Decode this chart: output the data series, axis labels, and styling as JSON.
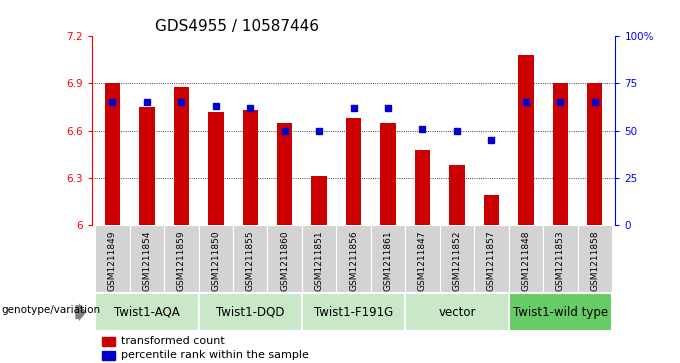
{
  "title": "GDS4955 / 10587446",
  "samples": [
    "GSM1211849",
    "GSM1211854",
    "GSM1211859",
    "GSM1211850",
    "GSM1211855",
    "GSM1211860",
    "GSM1211851",
    "GSM1211856",
    "GSM1211861",
    "GSM1211847",
    "GSM1211852",
    "GSM1211857",
    "GSM1211848",
    "GSM1211853",
    "GSM1211858"
  ],
  "bar_values": [
    6.9,
    6.75,
    6.88,
    6.72,
    6.73,
    6.65,
    6.31,
    6.68,
    6.65,
    6.48,
    6.38,
    6.19,
    7.08,
    6.9,
    6.9
  ],
  "percentile_values": [
    65,
    65,
    65,
    63,
    62,
    50,
    50,
    62,
    62,
    51,
    50,
    45,
    65,
    65,
    65
  ],
  "bar_color": "#cc0000",
  "dot_color": "#0000cc",
  "ylim_left": [
    6.0,
    7.2
  ],
  "ylim_right": [
    0,
    100
  ],
  "yticks_left": [
    6.0,
    6.3,
    6.6,
    6.9,
    7.2
  ],
  "yticks_right": [
    0,
    25,
    50,
    75,
    100
  ],
  "ytick_labels_left": [
    "6",
    "6.3",
    "6.6",
    "6.9",
    "7.2"
  ],
  "ytick_labels_right": [
    "0",
    "25",
    "50",
    "75",
    "100%"
  ],
  "hlines": [
    6.3,
    6.6,
    6.9
  ],
  "groups": [
    {
      "label": "Twist1-AQA",
      "start": 0,
      "end": 3,
      "color": "#c8e8c8"
    },
    {
      "label": "Twist1-DQD",
      "start": 3,
      "end": 6,
      "color": "#c8e8c8"
    },
    {
      "label": "Twist1-F191G",
      "start": 6,
      "end": 9,
      "color": "#c8e8c8"
    },
    {
      "label": "vector",
      "start": 9,
      "end": 12,
      "color": "#c8e8c8"
    },
    {
      "label": "Twist1-wild type",
      "start": 12,
      "end": 15,
      "color": "#66cc66"
    }
  ],
  "group_row_label": "genotype/variation",
  "legend_bar_label": "transformed count",
  "legend_dot_label": "percentile rank within the sample",
  "bar_width": 0.45,
  "title_fontsize": 11,
  "tick_fontsize": 7.5,
  "sample_fontsize": 6.5,
  "group_fontsize": 8.5,
  "legend_fontsize": 8,
  "xtick_bg": "#d3d3d3"
}
